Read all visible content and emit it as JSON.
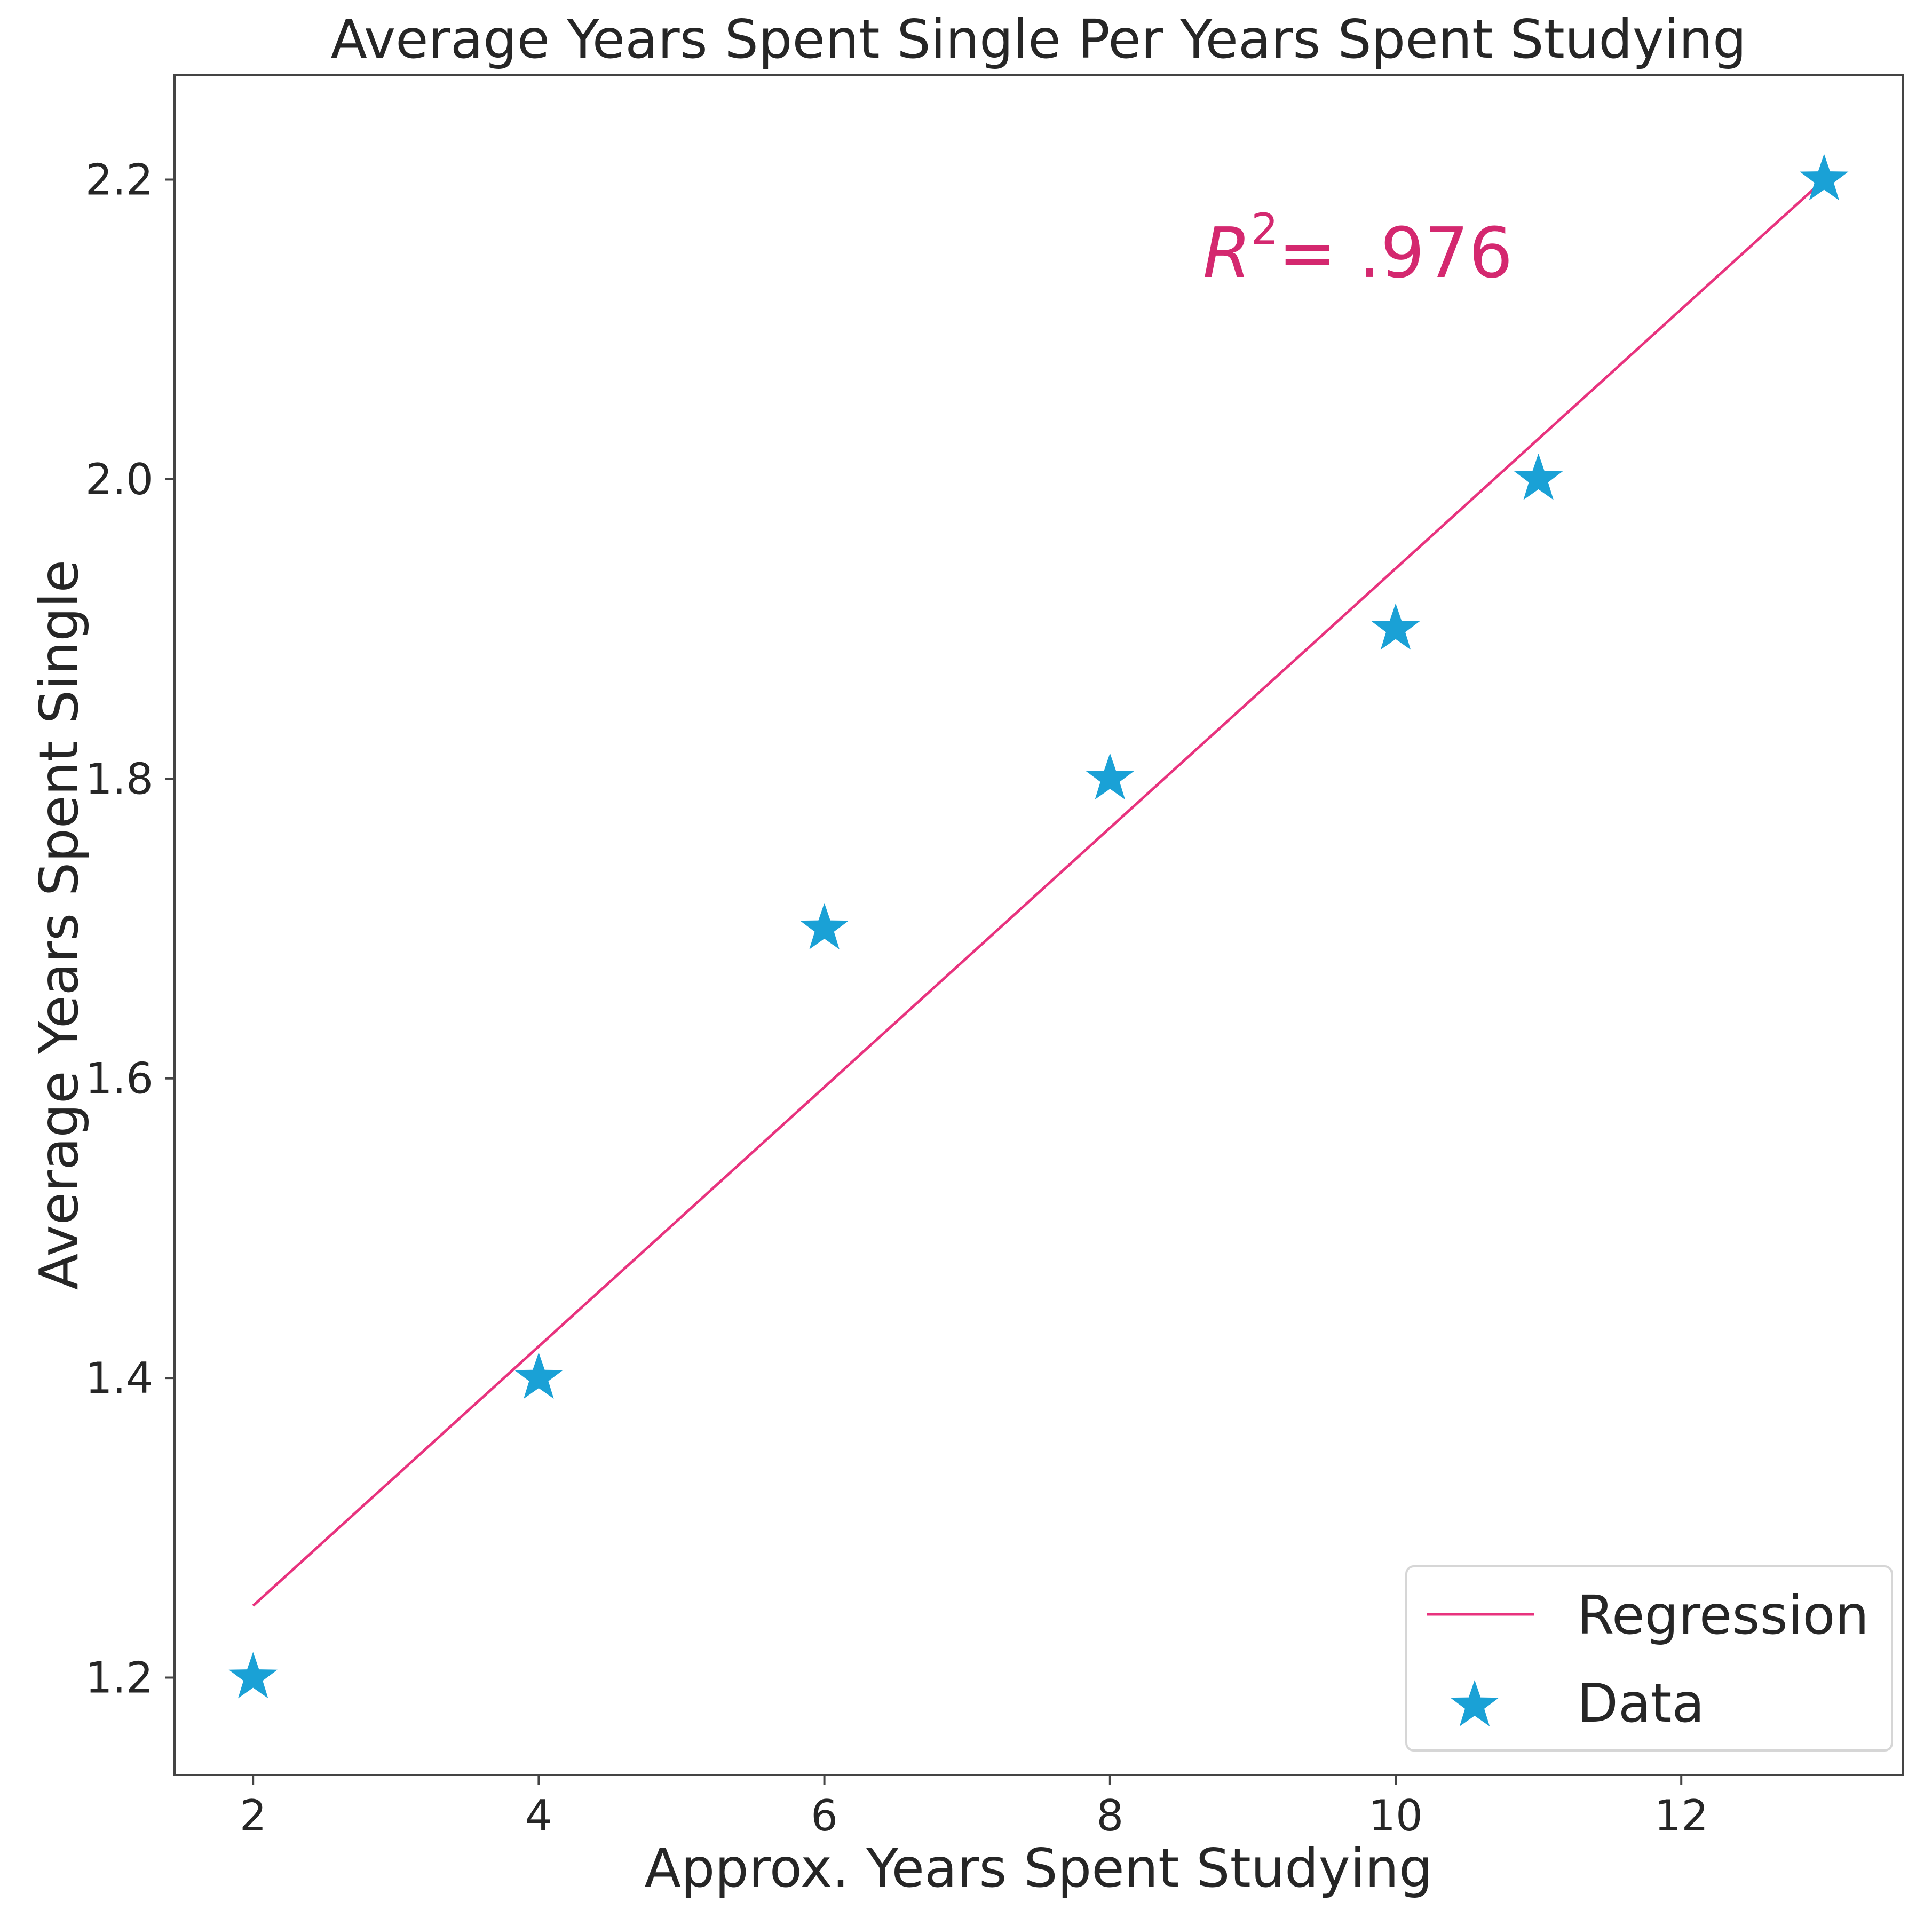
{
  "chart_data": {
    "type": "scatter",
    "title": "Average Years Spent Single Per Years Spent Studying",
    "xlabel": "Approx. Years Spent Studying",
    "ylabel": "Average Years Spent Single",
    "xlim": [
      1.45,
      13.55
    ],
    "ylim": [
      1.135,
      2.27
    ],
    "xticks": [
      2,
      4,
      6,
      8,
      10,
      12
    ],
    "yticks": [
      1.2,
      1.4,
      1.6,
      1.8,
      2.0,
      2.2
    ],
    "xtick_labels": [
      "2",
      "4",
      "6",
      "8",
      "10",
      "12"
    ],
    "ytick_labels": [
      "1.2",
      "1.4",
      "1.6",
      "1.8",
      "2.0",
      "2.2"
    ],
    "grid": false,
    "legend_position": "lower-right",
    "series": [
      {
        "name": "Regression",
        "kind": "line",
        "color": "#e8337e",
        "x": [
          2,
          13
        ],
        "y": [
          1.248,
          2.2
        ]
      },
      {
        "name": "Data",
        "kind": "scatter",
        "marker": "star",
        "color": "#1aa1d6",
        "x": [
          2,
          4,
          6,
          8,
          10,
          11,
          13
        ],
        "y": [
          1.2,
          1.4,
          1.7,
          1.8,
          1.9,
          2.0,
          2.2
        ]
      }
    ],
    "annotations": [
      {
        "text_main": "R",
        "text_sup": "2",
        "text_rest": "= .976",
        "color": "#d4286f",
        "x": 8.65,
        "y": 2.135
      }
    ]
  }
}
